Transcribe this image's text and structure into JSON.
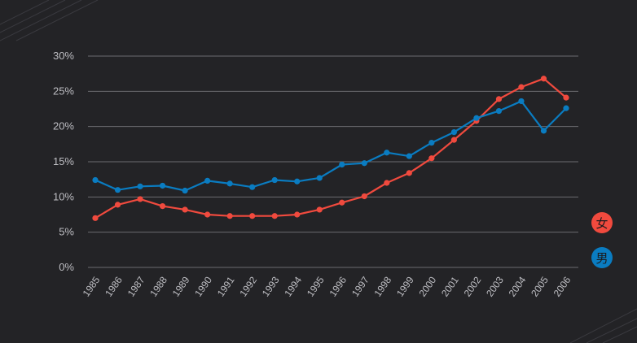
{
  "chart_data": {
    "type": "line",
    "x": [
      "1985",
      "1986",
      "1987",
      "1988",
      "1989",
      "1990",
      "1991",
      "1992",
      "1993",
      "1994",
      "1995",
      "1996",
      "1997",
      "1998",
      "1999",
      "2000",
      "2001",
      "2002",
      "2003",
      "2004",
      "2005",
      "2006"
    ],
    "series": [
      {
        "name": "女",
        "color": "#f04a3e",
        "values": [
          7.0,
          8.9,
          9.7,
          8.7,
          8.2,
          7.5,
          7.3,
          7.3,
          7.3,
          7.5,
          8.2,
          9.2,
          10.1,
          12.0,
          13.4,
          15.5,
          18.1,
          20.8,
          23.9,
          25.6,
          26.8,
          24.1
        ]
      },
      {
        "name": "男",
        "color": "#0a7cc1",
        "values": [
          12.4,
          11.0,
          11.5,
          11.6,
          10.9,
          12.3,
          11.9,
          11.4,
          12.4,
          12.2,
          12.7,
          14.6,
          14.8,
          16.3,
          15.8,
          17.7,
          19.2,
          21.2,
          22.2,
          23.6,
          19.4,
          22.6
        ]
      }
    ],
    "yticks": [
      "0%",
      "5%",
      "10%",
      "15%",
      "20%",
      "25%",
      "30%"
    ],
    "ylim": [
      0,
      30
    ],
    "grid": true,
    "legend_position": "right",
    "title": "",
    "xlabel": "",
    "ylabel": ""
  },
  "colors": {
    "background": "#232326",
    "grid": "#6b6b70",
    "tick_text": "#bdbdc2"
  }
}
